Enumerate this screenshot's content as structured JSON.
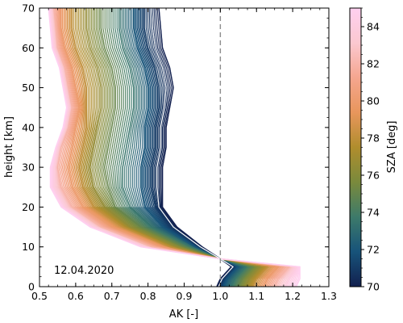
{
  "chart_data": {
    "type": "line",
    "title": "",
    "xlabel": "AK [-]",
    "ylabel": "height [km]",
    "xlim": [
      0.5,
      1.3
    ],
    "ylim": [
      0,
      70
    ],
    "xticks": [
      0.5,
      0.6,
      0.7,
      0.8,
      0.9,
      1.0,
      1.1,
      1.2,
      1.3
    ],
    "xtick_labels": [
      "0.5",
      "0.6",
      "0.7",
      "0.8",
      "0.9",
      "1.0",
      "1.1",
      "1.2",
      "1.3"
    ],
    "yticks": [
      0,
      10,
      20,
      30,
      40,
      50,
      60,
      70
    ],
    "ytick_labels": [
      "0",
      "10",
      "20",
      "30",
      "40",
      "50",
      "60",
      "70"
    ],
    "annotation": "12.04.2020",
    "reference_line": {
      "x": 1.0,
      "style": "dashed",
      "color": "#8c8c8c"
    },
    "colorbar": {
      "label": "SZA [deg]",
      "min": 70,
      "max": 85,
      "ticks": [
        70,
        72,
        74,
        76,
        78,
        80,
        82,
        84
      ],
      "tick_labels": [
        "70",
        "72",
        "74",
        "76",
        "78",
        "80",
        "82",
        "84"
      ],
      "colors": [
        "#12204f",
        "#17537a",
        "#3d7a6a",
        "#7a8a3c",
        "#b08d2d",
        "#e8965c",
        "#f5a68f",
        "#fbc8d0",
        "#ffd0f0"
      ]
    },
    "series": [
      {
        "sza": 70.0,
        "points": [
          [
            0.99,
            0
          ],
          [
            1.0,
            2
          ],
          [
            1.03,
            5
          ],
          [
            1.0,
            7
          ],
          [
            0.95,
            10
          ],
          [
            0.88,
            15
          ],
          [
            0.84,
            20
          ],
          [
            0.84,
            25
          ],
          [
            0.84,
            30
          ],
          [
            0.85,
            35
          ],
          [
            0.85,
            40
          ],
          [
            0.86,
            45
          ],
          [
            0.87,
            50
          ],
          [
            0.86,
            55
          ],
          [
            0.84,
            60
          ],
          [
            0.835,
            65
          ],
          [
            0.83,
            70
          ]
        ]
      },
      {
        "sza": 71.0,
        "points": [
          [
            1.0,
            0
          ],
          [
            1.01,
            2
          ],
          [
            1.04,
            5
          ],
          [
            1.0,
            7
          ],
          [
            0.94,
            10
          ],
          [
            0.86,
            15
          ],
          [
            0.82,
            20
          ],
          [
            0.81,
            25
          ],
          [
            0.81,
            30
          ],
          [
            0.82,
            35
          ],
          [
            0.82,
            40
          ],
          [
            0.83,
            45
          ],
          [
            0.83,
            50
          ],
          [
            0.82,
            55
          ],
          [
            0.8,
            60
          ],
          [
            0.79,
            65
          ],
          [
            0.79,
            70
          ]
        ]
      },
      {
        "sza": 72.0,
        "points": [
          [
            1.01,
            0
          ],
          [
            1.02,
            2
          ],
          [
            1.05,
            5
          ],
          [
            1.0,
            7
          ],
          [
            0.93,
            10
          ],
          [
            0.84,
            15
          ],
          [
            0.79,
            20
          ],
          [
            0.78,
            25
          ],
          [
            0.78,
            30
          ],
          [
            0.79,
            35
          ],
          [
            0.79,
            40
          ],
          [
            0.8,
            45
          ],
          [
            0.8,
            50
          ],
          [
            0.79,
            55
          ],
          [
            0.77,
            60
          ],
          [
            0.76,
            65
          ],
          [
            0.76,
            70
          ]
        ]
      },
      {
        "sza": 73.5,
        "points": [
          [
            1.03,
            0
          ],
          [
            1.04,
            2
          ],
          [
            1.07,
            5
          ],
          [
            1.0,
            7
          ],
          [
            0.92,
            10
          ],
          [
            0.81,
            15
          ],
          [
            0.75,
            20
          ],
          [
            0.73,
            25
          ],
          [
            0.73,
            30
          ],
          [
            0.74,
            35
          ],
          [
            0.75,
            40
          ],
          [
            0.76,
            45
          ],
          [
            0.76,
            50
          ],
          [
            0.75,
            55
          ],
          [
            0.73,
            60
          ],
          [
            0.72,
            65
          ],
          [
            0.72,
            70
          ]
        ]
      },
      {
        "sza": 75.0,
        "points": [
          [
            1.05,
            0
          ],
          [
            1.06,
            2
          ],
          [
            1.09,
            5
          ],
          [
            1.0,
            7
          ],
          [
            0.9,
            10
          ],
          [
            0.78,
            15
          ],
          [
            0.71,
            20
          ],
          [
            0.69,
            25
          ],
          [
            0.68,
            30
          ],
          [
            0.69,
            35
          ],
          [
            0.7,
            40
          ],
          [
            0.71,
            45
          ],
          [
            0.71,
            50
          ],
          [
            0.7,
            55
          ],
          [
            0.68,
            60
          ],
          [
            0.67,
            65
          ],
          [
            0.67,
            70
          ]
        ]
      },
      {
        "sza": 76.5,
        "points": [
          [
            1.07,
            0
          ],
          [
            1.08,
            2
          ],
          [
            1.11,
            5
          ],
          [
            1.0,
            7
          ],
          [
            0.88,
            10
          ],
          [
            0.75,
            15
          ],
          [
            0.68,
            20
          ],
          [
            0.65,
            25
          ],
          [
            0.64,
            30
          ],
          [
            0.65,
            35
          ],
          [
            0.66,
            40
          ],
          [
            0.67,
            45
          ],
          [
            0.67,
            50
          ],
          [
            0.66,
            55
          ],
          [
            0.64,
            60
          ],
          [
            0.63,
            65
          ],
          [
            0.63,
            70
          ]
        ]
      },
      {
        "sza": 78.0,
        "points": [
          [
            1.09,
            0
          ],
          [
            1.1,
            2
          ],
          [
            1.13,
            5
          ],
          [
            1.0,
            7
          ],
          [
            0.86,
            10
          ],
          [
            0.73,
            15
          ],
          [
            0.65,
            20
          ],
          [
            0.62,
            25
          ],
          [
            0.61,
            30
          ],
          [
            0.62,
            35
          ],
          [
            0.63,
            40
          ],
          [
            0.63,
            45
          ],
          [
            0.63,
            50
          ],
          [
            0.62,
            55
          ],
          [
            0.6,
            60
          ],
          [
            0.59,
            65
          ],
          [
            0.59,
            70
          ]
        ]
      },
      {
        "sza": 80.0,
        "points": [
          [
            1.12,
            0
          ],
          [
            1.13,
            2
          ],
          [
            1.16,
            5
          ],
          [
            1.0,
            7
          ],
          [
            0.84,
            10
          ],
          [
            0.7,
            15
          ],
          [
            0.62,
            20
          ],
          [
            0.59,
            25
          ],
          [
            0.58,
            30
          ],
          [
            0.59,
            35
          ],
          [
            0.6,
            40
          ],
          [
            0.61,
            45
          ],
          [
            0.6,
            50
          ],
          [
            0.59,
            55
          ],
          [
            0.57,
            60
          ],
          [
            0.56,
            65
          ],
          [
            0.56,
            70
          ]
        ]
      },
      {
        "sza": 82.0,
        "points": [
          [
            1.15,
            0
          ],
          [
            1.16,
            2
          ],
          [
            1.19,
            5
          ],
          [
            1.0,
            7
          ],
          [
            0.81,
            10
          ],
          [
            0.67,
            15
          ],
          [
            0.59,
            20
          ],
          [
            0.56,
            25
          ],
          [
            0.55,
            30
          ],
          [
            0.56,
            35
          ],
          [
            0.58,
            40
          ],
          [
            0.59,
            45
          ],
          [
            0.58,
            50
          ],
          [
            0.57,
            55
          ],
          [
            0.55,
            60
          ],
          [
            0.545,
            65
          ],
          [
            0.54,
            70
          ]
        ]
      },
      {
        "sza": 84.0,
        "points": [
          [
            1.18,
            0
          ],
          [
            1.19,
            2
          ],
          [
            1.21,
            5
          ],
          [
            1.0,
            7
          ],
          [
            0.79,
            10
          ],
          [
            0.65,
            15
          ],
          [
            0.57,
            20
          ],
          [
            0.54,
            25
          ],
          [
            0.54,
            30
          ],
          [
            0.55,
            35
          ],
          [
            0.57,
            40
          ],
          [
            0.58,
            45
          ],
          [
            0.57,
            50
          ],
          [
            0.56,
            55
          ],
          [
            0.54,
            60
          ],
          [
            0.535,
            65
          ],
          [
            0.53,
            70
          ]
        ]
      },
      {
        "sza": 85.0,
        "points": [
          [
            1.21,
            0
          ],
          [
            1.22,
            2
          ],
          [
            1.22,
            5
          ],
          [
            1.0,
            7
          ],
          [
            0.78,
            10
          ],
          [
            0.64,
            15
          ],
          [
            0.56,
            20
          ],
          [
            0.53,
            25
          ],
          [
            0.53,
            30
          ],
          [
            0.545,
            35
          ],
          [
            0.565,
            40
          ],
          [
            0.575,
            45
          ],
          [
            0.565,
            50
          ],
          [
            0.555,
            55
          ],
          [
            0.535,
            60
          ],
          [
            0.53,
            65
          ],
          [
            0.525,
            70
          ]
        ]
      }
    ]
  }
}
